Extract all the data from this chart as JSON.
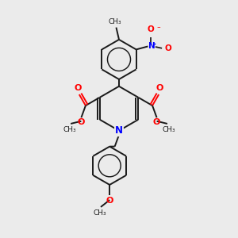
{
  "bg_color": "#ebebeb",
  "bond_color": "#1a1a1a",
  "bond_width": 1.4,
  "figsize": [
    3.0,
    3.0
  ],
  "dpi": 100,
  "xlim": [
    0,
    10
  ],
  "ylim": [
    0,
    10
  ]
}
